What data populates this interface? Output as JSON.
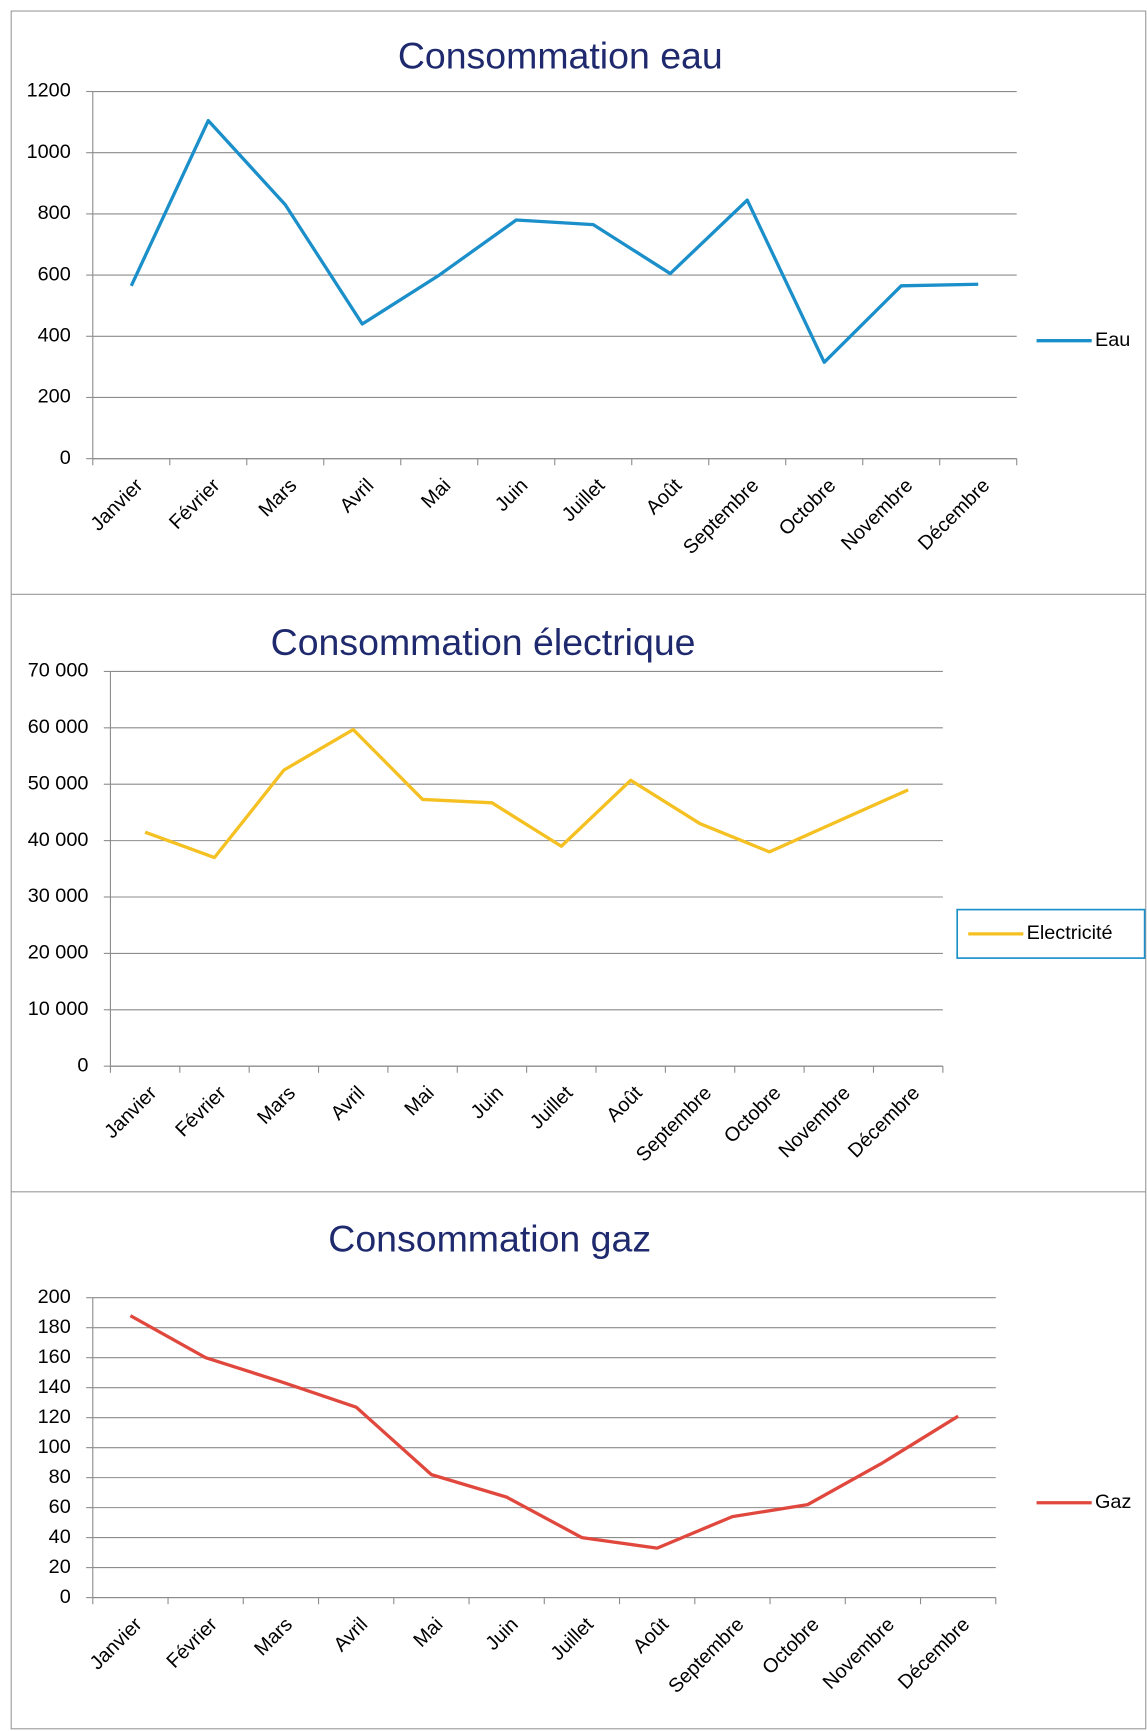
{
  "chart_data": [
    {
      "type": "line",
      "title": "Consommation eau",
      "categories": [
        "Janvier",
        "Février",
        "Mars",
        "Avril",
        "Mai",
        "Juin",
        "Juillet",
        "Août",
        "Septembre",
        "Octobre",
        "Novembre",
        "Décembre"
      ],
      "series": [
        {
          "name": "Eau",
          "color": "#1a8fc9",
          "values": [
            565,
            1105,
            830,
            440,
            600,
            780,
            765,
            605,
            845,
            315,
            565,
            570
          ]
        }
      ],
      "ylim": [
        0,
        1200
      ],
      "yticks": [
        0,
        200,
        400,
        600,
        800,
        1000,
        1200
      ],
      "grid": true,
      "legend": "right",
      "legend_frame": false
    },
    {
      "type": "line",
      "title": "Consommation électrique",
      "categories": [
        "Janvier",
        "Février",
        "Mars",
        "Avril",
        "Mai",
        "Juin",
        "Juillet",
        "Août",
        "Septembre",
        "Octobre",
        "Novembre",
        "Décembre"
      ],
      "series": [
        {
          "name": "Electricité",
          "color": "#f5c021",
          "values": [
            41500,
            37000,
            52500,
            59700,
            47300,
            46700,
            39000,
            50700,
            43000,
            38000,
            43500,
            49000
          ]
        }
      ],
      "ylim": [
        0,
        70000
      ],
      "yticks": [
        0,
        {
          "value": 10000,
          "label": "10 000"
        },
        {
          "value": 20000,
          "label": "20 000"
        },
        {
          "value": 30000,
          "label": "30 000"
        },
        {
          "value": 40000,
          "label": "40 000"
        },
        {
          "value": 50000,
          "label": "50 000"
        },
        {
          "value": 60000,
          "label": "60 000"
        },
        {
          "value": 70000,
          "label": "70 000"
        }
      ],
      "grid": true,
      "legend": "right",
      "legend_frame": true
    },
    {
      "type": "line",
      "title": "Consommation gaz",
      "categories": [
        "Janvier",
        "Février",
        "Mars",
        "Avril",
        "Mai",
        "Juin",
        "Juillet",
        "Août",
        "Septembre",
        "Octobre",
        "Novembre",
        "Décembre"
      ],
      "series": [
        {
          "name": "Gaz",
          "color": "#e0483e",
          "values": [
            188,
            160,
            144,
            127,
            82,
            67,
            40,
            33,
            54,
            62,
            90,
            121
          ]
        }
      ],
      "ylim": [
        0,
        200
      ],
      "yticks": [
        0,
        20,
        40,
        60,
        80,
        100,
        120,
        140,
        160,
        180,
        200
      ],
      "grid": true,
      "legend": "right",
      "legend_frame": false
    }
  ]
}
